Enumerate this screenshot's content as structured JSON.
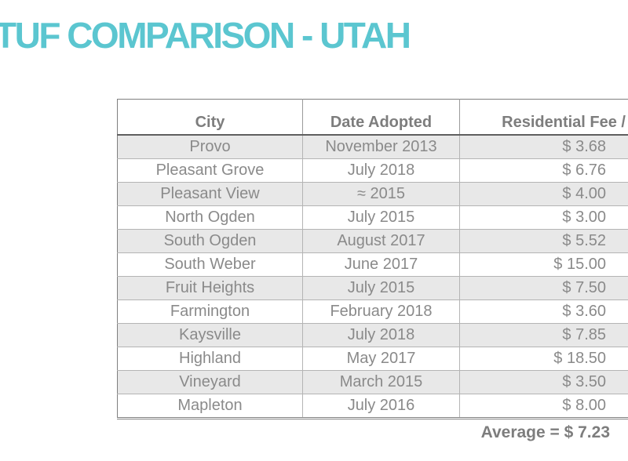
{
  "page": {
    "background_color": "#ffffff",
    "accent_color": "#5bc6d0",
    "text_color": "#8a8a8a"
  },
  "title": {
    "text": "TUF COMPARISON - UTAH"
  },
  "table": {
    "headers": {
      "city": "City",
      "date_adopted": "Date Adopted",
      "fee": "Residential Fee /"
    },
    "stripe_color": "#e8e8e8",
    "rows": [
      {
        "city": "Provo",
        "date_adopted": "November 2013",
        "fee": "$ 3.68"
      },
      {
        "city": "Pleasant Grove",
        "date_adopted": "July 2018",
        "fee": "$ 6.76"
      },
      {
        "city": "Pleasant View",
        "date_adopted": "≈ 2015",
        "fee": "$ 4.00"
      },
      {
        "city": "North Ogden",
        "date_adopted": "July 2015",
        "fee": "$ 3.00"
      },
      {
        "city": "South Ogden",
        "date_adopted": "August 2017",
        "fee": "$ 5.52"
      },
      {
        "city": "South Weber",
        "date_adopted": "June 2017",
        "fee": "$ 15.00"
      },
      {
        "city": "Fruit Heights",
        "date_adopted": "July 2015",
        "fee": "$ 7.50"
      },
      {
        "city": "Farmington",
        "date_adopted": "February 2018",
        "fee": "$ 3.60"
      },
      {
        "city": "Kaysville",
        "date_adopted": "July 2018",
        "fee": "$ 7.85"
      },
      {
        "city": "Highland",
        "date_adopted": "May 2017",
        "fee": "$ 18.50"
      },
      {
        "city": "Vineyard",
        "date_adopted": "March 2015",
        "fee": "$ 3.50"
      },
      {
        "city": "Mapleton",
        "date_adopted": "July 2016",
        "fee": "$ 8.00"
      }
    ]
  },
  "summary": {
    "average_text": "Average = $ 7.23"
  }
}
